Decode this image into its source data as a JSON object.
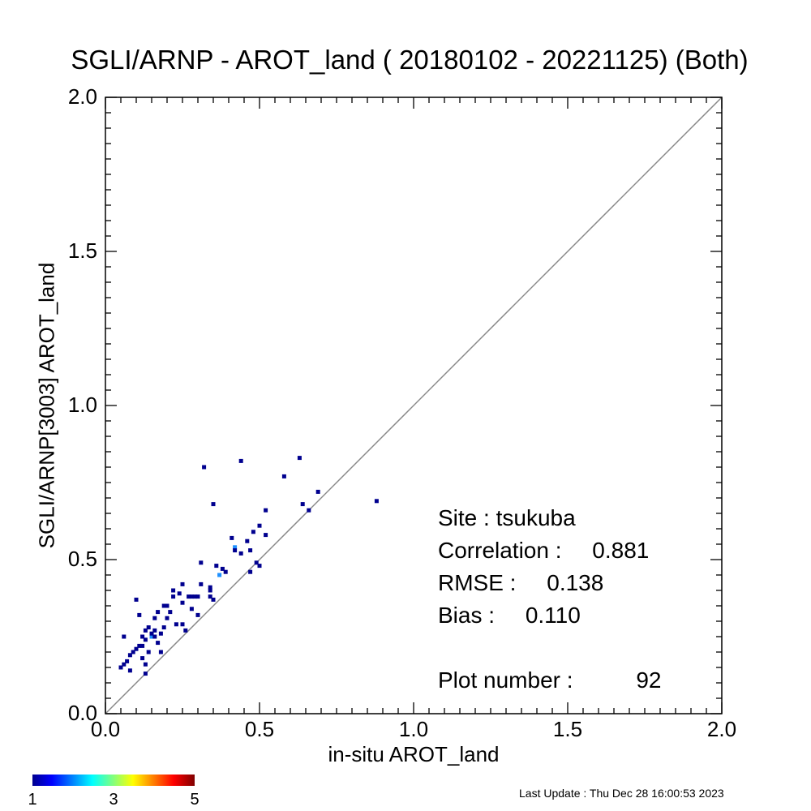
{
  "chart_data": {
    "type": "scatter",
    "title": "SGLI/ARNP - AROT_land ( 20180102 - 20221125) (Both)",
    "xlabel": "in-situ AROT_land",
    "ylabel": "SGLI/ARNP[3003]    AROT_land",
    "xlim": [
      0,
      2
    ],
    "ylim": [
      0,
      2
    ],
    "xticks": [
      "0.0",
      "0.5",
      "1.0",
      "1.5",
      "2.0"
    ],
    "yticks": [
      "0.0",
      "0.5",
      "1.0",
      "1.5",
      "2.0"
    ],
    "grid": false,
    "reference_line": "1:1",
    "color_scale": {
      "min_label": "1",
      "mid_label": "3",
      "max_label": "5",
      "colors": [
        "#00008f",
        "#0000ff",
        "#00ffff",
        "#ffff00",
        "#ff0000",
        "#800000"
      ]
    },
    "points": [
      {
        "x": 0.06,
        "y": 0.16,
        "c": 1
      },
      {
        "x": 0.05,
        "y": 0.15,
        "c": 1
      },
      {
        "x": 0.06,
        "y": 0.25,
        "c": 1
      },
      {
        "x": 0.07,
        "y": 0.17,
        "c": 1
      },
      {
        "x": 0.08,
        "y": 0.19,
        "c": 1
      },
      {
        "x": 0.09,
        "y": 0.2,
        "c": 1
      },
      {
        "x": 0.08,
        "y": 0.14,
        "c": 1
      },
      {
        "x": 0.1,
        "y": 0.21,
        "c": 1
      },
      {
        "x": 0.1,
        "y": 0.37,
        "c": 1
      },
      {
        "x": 0.11,
        "y": 0.22,
        "c": 1
      },
      {
        "x": 0.11,
        "y": 0.32,
        "c": 1
      },
      {
        "x": 0.12,
        "y": 0.22,
        "c": 1
      },
      {
        "x": 0.12,
        "y": 0.25,
        "c": 1
      },
      {
        "x": 0.12,
        "y": 0.18,
        "c": 1
      },
      {
        "x": 0.13,
        "y": 0.24,
        "c": 1
      },
      {
        "x": 0.13,
        "y": 0.27,
        "c": 1
      },
      {
        "x": 0.13,
        "y": 0.13,
        "c": 1
      },
      {
        "x": 0.13,
        "y": 0.16,
        "c": 1
      },
      {
        "x": 0.14,
        "y": 0.2,
        "c": 1
      },
      {
        "x": 0.14,
        "y": 0.28,
        "c": 1
      },
      {
        "x": 0.15,
        "y": 0.25,
        "c": 2
      },
      {
        "x": 0.15,
        "y": 0.26,
        "c": 1
      },
      {
        "x": 0.16,
        "y": 0.25,
        "c": 1
      },
      {
        "x": 0.16,
        "y": 0.27,
        "c": 1
      },
      {
        "x": 0.16,
        "y": 0.31,
        "c": 1
      },
      {
        "x": 0.17,
        "y": 0.23,
        "c": 1
      },
      {
        "x": 0.17,
        "y": 0.33,
        "c": 1
      },
      {
        "x": 0.18,
        "y": 0.26,
        "c": 1
      },
      {
        "x": 0.18,
        "y": 0.2,
        "c": 1
      },
      {
        "x": 0.19,
        "y": 0.28,
        "c": 1
      },
      {
        "x": 0.19,
        "y": 0.35,
        "c": 1
      },
      {
        "x": 0.2,
        "y": 0.31,
        "c": 1
      },
      {
        "x": 0.2,
        "y": 0.35,
        "c": 1
      },
      {
        "x": 0.21,
        "y": 0.33,
        "c": 1
      },
      {
        "x": 0.22,
        "y": 0.38,
        "c": 1
      },
      {
        "x": 0.22,
        "y": 0.4,
        "c": 1
      },
      {
        "x": 0.23,
        "y": 0.29,
        "c": 1
      },
      {
        "x": 0.24,
        "y": 0.39,
        "c": 1
      },
      {
        "x": 0.25,
        "y": 0.42,
        "c": 1
      },
      {
        "x": 0.25,
        "y": 0.29,
        "c": 1
      },
      {
        "x": 0.25,
        "y": 0.36,
        "c": 1
      },
      {
        "x": 0.26,
        "y": 0.27,
        "c": 1
      },
      {
        "x": 0.27,
        "y": 0.38,
        "c": 1
      },
      {
        "x": 0.28,
        "y": 0.38,
        "c": 1
      },
      {
        "x": 0.28,
        "y": 0.34,
        "c": 1
      },
      {
        "x": 0.29,
        "y": 0.38,
        "c": 1
      },
      {
        "x": 0.3,
        "y": 0.38,
        "c": 1
      },
      {
        "x": 0.3,
        "y": 0.32,
        "c": 1
      },
      {
        "x": 0.31,
        "y": 0.42,
        "c": 1
      },
      {
        "x": 0.31,
        "y": 0.49,
        "c": 1
      },
      {
        "x": 0.32,
        "y": 0.8,
        "c": 1
      },
      {
        "x": 0.34,
        "y": 0.41,
        "c": 1
      },
      {
        "x": 0.34,
        "y": 0.4,
        "c": 1
      },
      {
        "x": 0.34,
        "y": 0.38,
        "c": 1
      },
      {
        "x": 0.35,
        "y": 0.37,
        "c": 1
      },
      {
        "x": 0.35,
        "y": 0.68,
        "c": 1
      },
      {
        "x": 0.36,
        "y": 0.48,
        "c": 1
      },
      {
        "x": 0.37,
        "y": 0.45,
        "c": 2
      },
      {
        "x": 0.38,
        "y": 0.47,
        "c": 1
      },
      {
        "x": 0.39,
        "y": 0.46,
        "c": 1
      },
      {
        "x": 0.41,
        "y": 0.57,
        "c": 1
      },
      {
        "x": 0.42,
        "y": 0.54,
        "c": 2
      },
      {
        "x": 0.42,
        "y": 0.53,
        "c": 1
      },
      {
        "x": 0.44,
        "y": 0.52,
        "c": 1
      },
      {
        "x": 0.44,
        "y": 0.82,
        "c": 1
      },
      {
        "x": 0.46,
        "y": 0.56,
        "c": 1
      },
      {
        "x": 0.47,
        "y": 0.53,
        "c": 1
      },
      {
        "x": 0.47,
        "y": 0.46,
        "c": 1
      },
      {
        "x": 0.48,
        "y": 0.59,
        "c": 1
      },
      {
        "x": 0.49,
        "y": 0.49,
        "c": 1
      },
      {
        "x": 0.5,
        "y": 0.48,
        "c": 1
      },
      {
        "x": 0.5,
        "y": 0.61,
        "c": 1
      },
      {
        "x": 0.52,
        "y": 0.66,
        "c": 1
      },
      {
        "x": 0.52,
        "y": 0.58,
        "c": 1
      },
      {
        "x": 0.58,
        "y": 0.77,
        "c": 1
      },
      {
        "x": 0.63,
        "y": 0.83,
        "c": 1
      },
      {
        "x": 0.64,
        "y": 0.68,
        "c": 1
      },
      {
        "x": 0.66,
        "y": 0.66,
        "c": 1
      },
      {
        "x": 0.69,
        "y": 0.72,
        "c": 1
      },
      {
        "x": 0.88,
        "y": 0.69,
        "c": 1
      }
    ]
  },
  "stats": {
    "site": "Site : tsukuba",
    "corr_label": "Correlation :",
    "corr_value": "0.881",
    "rmse_label": "RMSE :",
    "rmse_value": "0.138",
    "bias_label": "Bias :",
    "bias_value": "0.110",
    "plot_label": "Plot number :",
    "plot_value": "92"
  },
  "footer": "Last Update : Thu Dec 28 16:00:53 2023"
}
